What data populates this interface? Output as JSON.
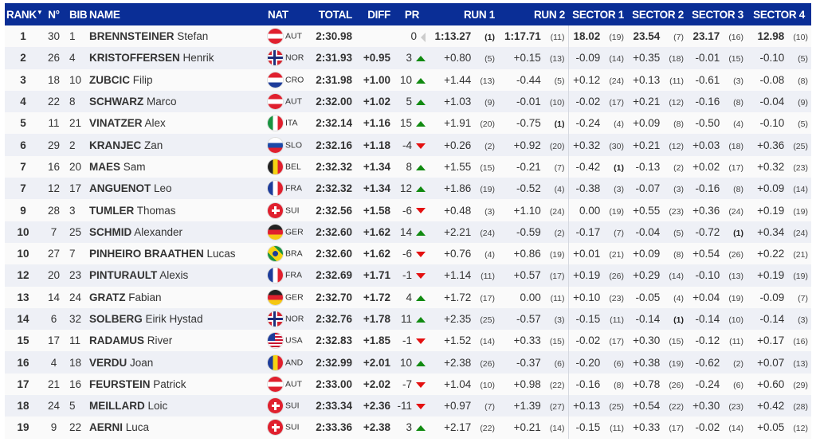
{
  "headers": {
    "rank": "RANK",
    "rank_sort": "▼",
    "no": "N°",
    "bib": "BIB",
    "name": "NAME",
    "nat": "NAT",
    "total": "TOTAL",
    "diff": "DIFF",
    "pr": "PR",
    "run1": "RUN 1",
    "run2": "RUN 2",
    "s1": "SECTOR 1",
    "s2": "SECTOR 2",
    "s3": "SECTOR 3",
    "s4": "SECTOR 4"
  },
  "colors": {
    "header_bg": "#0a2e96",
    "up": "#118a11",
    "down": "#e41010"
  },
  "rows": [
    {
      "rank": "1",
      "no": "30",
      "bib": "1",
      "last": "BRENNSTEINER",
      "first": "Stefan",
      "nat": "AUT",
      "total": "2:30.98",
      "diff": "",
      "pr": "0",
      "trend": "same",
      "run1": "1:13.27",
      "run1_rank": "(1)",
      "run2": "1:17.71",
      "run2_rank": "(11)",
      "s1": "18.02",
      "s1_rank": "(19)",
      "s2": "23.54",
      "s2_rank": "(7)",
      "s3": "23.17",
      "s3_rank": "(16)",
      "s4": "12.98",
      "s4_rank": "(10)"
    },
    {
      "rank": "2",
      "no": "26",
      "bib": "4",
      "last": "KRISTOFFERSEN",
      "first": "Henrik",
      "nat": "NOR",
      "total": "2:31.93",
      "diff": "+0.95",
      "pr": "3",
      "trend": "up",
      "run1": "+0.80",
      "run1_rank": "(5)",
      "run2": "+0.15",
      "run2_rank": "(13)",
      "s1": "-0.09",
      "s1_rank": "(14)",
      "s2": "+0.35",
      "s2_rank": "(18)",
      "s3": "-0.01",
      "s3_rank": "(15)",
      "s4": "-0.10",
      "s4_rank": "(5)"
    },
    {
      "rank": "3",
      "no": "18",
      "bib": "10",
      "last": "ZUBCIC",
      "first": "Filip",
      "nat": "CRO",
      "total": "2:31.98",
      "diff": "+1.00",
      "pr": "10",
      "trend": "up",
      "run1": "+1.44",
      "run1_rank": "(13)",
      "run2": "-0.44",
      "run2_rank": "(5)",
      "s1": "+0.12",
      "s1_rank": "(24)",
      "s2": "+0.13",
      "s2_rank": "(11)",
      "s3": "-0.61",
      "s3_rank": "(3)",
      "s4": "-0.08",
      "s4_rank": "(8)"
    },
    {
      "rank": "4",
      "no": "22",
      "bib": "8",
      "last": "SCHWARZ",
      "first": "Marco",
      "nat": "AUT",
      "total": "2:32.00",
      "diff": "+1.02",
      "pr": "5",
      "trend": "up",
      "run1": "+1.03",
      "run1_rank": "(9)",
      "run2": "-0.01",
      "run2_rank": "(10)",
      "s1": "-0.02",
      "s1_rank": "(17)",
      "s2": "+0.21",
      "s2_rank": "(12)",
      "s3": "-0.16",
      "s3_rank": "(8)",
      "s4": "-0.04",
      "s4_rank": "(9)"
    },
    {
      "rank": "5",
      "no": "11",
      "bib": "21",
      "last": "VINATZER",
      "first": "Alex",
      "nat": "ITA",
      "total": "2:32.14",
      "diff": "+1.16",
      "pr": "15",
      "trend": "up",
      "run1": "+1.91",
      "run1_rank": "(20)",
      "run2": "-0.75",
      "run2_rank": "(1)",
      "s1": "-0.24",
      "s1_rank": "(4)",
      "s2": "+0.09",
      "s2_rank": "(8)",
      "s3": "-0.50",
      "s3_rank": "(4)",
      "s4": "-0.10",
      "s4_rank": "(5)"
    },
    {
      "rank": "6",
      "no": "29",
      "bib": "2",
      "last": "KRANJEC",
      "first": "Zan",
      "nat": "SLO",
      "total": "2:32.16",
      "diff": "+1.18",
      "pr": "-4",
      "trend": "down",
      "run1": "+0.26",
      "run1_rank": "(2)",
      "run2": "+0.92",
      "run2_rank": "(20)",
      "s1": "+0.32",
      "s1_rank": "(30)",
      "s2": "+0.21",
      "s2_rank": "(12)",
      "s3": "+0.03",
      "s3_rank": "(18)",
      "s4": "+0.36",
      "s4_rank": "(25)"
    },
    {
      "rank": "7",
      "no": "16",
      "bib": "20",
      "last": "MAES",
      "first": "Sam",
      "nat": "BEL",
      "total": "2:32.32",
      "diff": "+1.34",
      "pr": "8",
      "trend": "up",
      "run1": "+1.55",
      "run1_rank": "(15)",
      "run2": "-0.21",
      "run2_rank": "(7)",
      "s1": "-0.42",
      "s1_rank": "(1)",
      "s2": "-0.13",
      "s2_rank": "(2)",
      "s3": "+0.02",
      "s3_rank": "(17)",
      "s4": "+0.32",
      "s4_rank": "(23)"
    },
    {
      "rank": "7",
      "no": "12",
      "bib": "17",
      "last": "ANGUENOT",
      "first": "Leo",
      "nat": "FRA",
      "total": "2:32.32",
      "diff": "+1.34",
      "pr": "12",
      "trend": "up",
      "run1": "+1.86",
      "run1_rank": "(19)",
      "run2": "-0.52",
      "run2_rank": "(4)",
      "s1": "-0.38",
      "s1_rank": "(3)",
      "s2": "-0.07",
      "s2_rank": "(3)",
      "s3": "-0.16",
      "s3_rank": "(8)",
      "s4": "+0.09",
      "s4_rank": "(14)"
    },
    {
      "rank": "9",
      "no": "28",
      "bib": "3",
      "last": "TUMLER",
      "first": "Thomas",
      "nat": "SUI",
      "total": "2:32.56",
      "diff": "+1.58",
      "pr": "-6",
      "trend": "down",
      "run1": "+0.48",
      "run1_rank": "(3)",
      "run2": "+1.10",
      "run2_rank": "(24)",
      "s1": "0.00",
      "s1_rank": "(19)",
      "s2": "+0.55",
      "s2_rank": "(23)",
      "s3": "+0.36",
      "s3_rank": "(24)",
      "s4": "+0.19",
      "s4_rank": "(19)"
    },
    {
      "rank": "10",
      "no": "7",
      "bib": "25",
      "last": "SCHMID",
      "first": "Alexander",
      "nat": "GER",
      "total": "2:32.60",
      "diff": "+1.62",
      "pr": "14",
      "trend": "up",
      "run1": "+2.21",
      "run1_rank": "(24)",
      "run2": "-0.59",
      "run2_rank": "(2)",
      "s1": "-0.17",
      "s1_rank": "(7)",
      "s2": "-0.04",
      "s2_rank": "(5)",
      "s3": "-0.72",
      "s3_rank": "(1)",
      "s4": "+0.34",
      "s4_rank": "(24)"
    },
    {
      "rank": "10",
      "no": "27",
      "bib": "7",
      "last": "PINHEIRO BRAATHEN",
      "first": "Lucas",
      "nat": "BRA",
      "total": "2:32.60",
      "diff": "+1.62",
      "pr": "-6",
      "trend": "down",
      "run1": "+0.76",
      "run1_rank": "(4)",
      "run2": "+0.86",
      "run2_rank": "(19)",
      "s1": "+0.01",
      "s1_rank": "(21)",
      "s2": "+0.09",
      "s2_rank": "(8)",
      "s3": "+0.54",
      "s3_rank": "(26)",
      "s4": "+0.22",
      "s4_rank": "(21)"
    },
    {
      "rank": "12",
      "no": "20",
      "bib": "23",
      "last": "PINTURAULT",
      "first": "Alexis",
      "nat": "FRA",
      "total": "2:32.69",
      "diff": "+1.71",
      "pr": "-1",
      "trend": "down",
      "run1": "+1.14",
      "run1_rank": "(11)",
      "run2": "+0.57",
      "run2_rank": "(17)",
      "s1": "+0.19",
      "s1_rank": "(26)",
      "s2": "+0.29",
      "s2_rank": "(14)",
      "s3": "-0.10",
      "s3_rank": "(13)",
      "s4": "+0.19",
      "s4_rank": "(19)"
    },
    {
      "rank": "13",
      "no": "14",
      "bib": "24",
      "last": "GRATZ",
      "first": "Fabian",
      "nat": "GER",
      "total": "2:32.70",
      "diff": "+1.72",
      "pr": "4",
      "trend": "up",
      "run1": "+1.72",
      "run1_rank": "(17)",
      "run2": "0.00",
      "run2_rank": "(11)",
      "s1": "+0.10",
      "s1_rank": "(23)",
      "s2": "-0.05",
      "s2_rank": "(4)",
      "s3": "+0.04",
      "s3_rank": "(19)",
      "s4": "-0.09",
      "s4_rank": "(7)"
    },
    {
      "rank": "14",
      "no": "6",
      "bib": "32",
      "last": "SOLBERG",
      "first": "Eirik Hystad",
      "nat": "NOR",
      "total": "2:32.76",
      "diff": "+1.78",
      "pr": "11",
      "trend": "up",
      "run1": "+2.35",
      "run1_rank": "(25)",
      "run2": "-0.57",
      "run2_rank": "(3)",
      "s1": "-0.15",
      "s1_rank": "(11)",
      "s2": "-0.14",
      "s2_rank": "(1)",
      "s3": "-0.14",
      "s3_rank": "(10)",
      "s4": "-0.14",
      "s4_rank": "(3)"
    },
    {
      "rank": "15",
      "no": "17",
      "bib": "11",
      "last": "RADAMUS",
      "first": "River",
      "nat": "USA",
      "total": "2:32.83",
      "diff": "+1.85",
      "pr": "-1",
      "trend": "down",
      "run1": "+1.52",
      "run1_rank": "(14)",
      "run2": "+0.33",
      "run2_rank": "(15)",
      "s1": "-0.02",
      "s1_rank": "(17)",
      "s2": "+0.30",
      "s2_rank": "(15)",
      "s3": "-0.12",
      "s3_rank": "(11)",
      "s4": "+0.17",
      "s4_rank": "(16)"
    },
    {
      "rank": "16",
      "no": "4",
      "bib": "18",
      "last": "VERDU",
      "first": "Joan",
      "nat": "AND",
      "total": "2:32.99",
      "diff": "+2.01",
      "pr": "10",
      "trend": "up",
      "run1": "+2.38",
      "run1_rank": "(26)",
      "run2": "-0.37",
      "run2_rank": "(6)",
      "s1": "-0.20",
      "s1_rank": "(6)",
      "s2": "+0.38",
      "s2_rank": "(19)",
      "s3": "-0.62",
      "s3_rank": "(2)",
      "s4": "+0.07",
      "s4_rank": "(13)"
    },
    {
      "rank": "17",
      "no": "21",
      "bib": "16",
      "last": "FEURSTEIN",
      "first": "Patrick",
      "nat": "AUT",
      "total": "2:33.00",
      "diff": "+2.02",
      "pr": "-7",
      "trend": "down",
      "run1": "+1.04",
      "run1_rank": "(10)",
      "run2": "+0.98",
      "run2_rank": "(22)",
      "s1": "-0.16",
      "s1_rank": "(8)",
      "s2": "+0.78",
      "s2_rank": "(26)",
      "s3": "-0.24",
      "s3_rank": "(6)",
      "s4": "+0.60",
      "s4_rank": "(29)"
    },
    {
      "rank": "18",
      "no": "24",
      "bib": "5",
      "last": "MEILLARD",
      "first": "Loic",
      "nat": "SUI",
      "total": "2:33.34",
      "diff": "+2.36",
      "pr": "-11",
      "trend": "down",
      "run1": "+0.97",
      "run1_rank": "(7)",
      "run2": "+1.39",
      "run2_rank": "(27)",
      "s1": "+0.13",
      "s1_rank": "(25)",
      "s2": "+0.54",
      "s2_rank": "(22)",
      "s3": "+0.30",
      "s3_rank": "(23)",
      "s4": "+0.42",
      "s4_rank": "(28)"
    },
    {
      "rank": "19",
      "no": "9",
      "bib": "22",
      "last": "AERNI",
      "first": "Luca",
      "nat": "SUI",
      "total": "2:33.36",
      "diff": "+2.38",
      "pr": "3",
      "trend": "up",
      "run1": "+2.17",
      "run1_rank": "(22)",
      "run2": "+0.21",
      "run2_rank": "(14)",
      "s1": "-0.15",
      "s1_rank": "(11)",
      "s2": "+0.33",
      "s2_rank": "(17)",
      "s3": "-0.02",
      "s3_rank": "(14)",
      "s4": "+0.05",
      "s4_rank": "(12)"
    }
  ]
}
